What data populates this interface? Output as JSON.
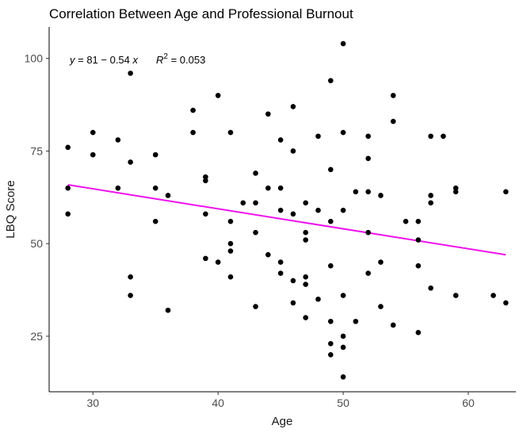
{
  "chart_data": {
    "type": "scatter",
    "title": "Correlation Between Age and Professional Burnout",
    "xlabel": "Age",
    "ylabel": "LBQ Score",
    "xlim": [
      26.5,
      63.8
    ],
    "ylim": [
      10,
      108.5
    ],
    "x_ticks": [
      30,
      40,
      50,
      60
    ],
    "y_ticks": [
      25,
      50,
      75,
      100
    ],
    "grid": false,
    "point_color": "#000000",
    "line_color": "#ee11ee",
    "annotation": {
      "y_var": "y",
      "equation": " = 81 − 0.54 ",
      "x_var": "x",
      "r2_base": "R",
      "r2_exp": "2",
      "r2_value": " = 0.053"
    },
    "regression": {
      "intercept": 81,
      "slope": -0.54,
      "x_range": [
        28,
        63
      ]
    },
    "points": [
      {
        "x": 28,
        "y": 76
      },
      {
        "x": 28,
        "y": 65
      },
      {
        "x": 28,
        "y": 58
      },
      {
        "x": 30,
        "y": 80
      },
      {
        "x": 30,
        "y": 74
      },
      {
        "x": 32,
        "y": 78
      },
      {
        "x": 32,
        "y": 65
      },
      {
        "x": 33,
        "y": 96
      },
      {
        "x": 33,
        "y": 72
      },
      {
        "x": 33,
        "y": 41
      },
      {
        "x": 33,
        "y": 36
      },
      {
        "x": 35,
        "y": 74
      },
      {
        "x": 35,
        "y": 65
      },
      {
        "x": 35,
        "y": 56
      },
      {
        "x": 36,
        "y": 63
      },
      {
        "x": 36,
        "y": 32
      },
      {
        "x": 38,
        "y": 86
      },
      {
        "x": 38,
        "y": 80
      },
      {
        "x": 39,
        "y": 68
      },
      {
        "x": 39,
        "y": 67
      },
      {
        "x": 39,
        "y": 58
      },
      {
        "x": 39,
        "y": 46
      },
      {
        "x": 40,
        "y": 90
      },
      {
        "x": 40,
        "y": 45
      },
      {
        "x": 41,
        "y": 80
      },
      {
        "x": 41,
        "y": 56
      },
      {
        "x": 41,
        "y": 50
      },
      {
        "x": 41,
        "y": 48
      },
      {
        "x": 41,
        "y": 41
      },
      {
        "x": 42,
        "y": 61
      },
      {
        "x": 43,
        "y": 69
      },
      {
        "x": 43,
        "y": 61
      },
      {
        "x": 43,
        "y": 53
      },
      {
        "x": 43,
        "y": 33
      },
      {
        "x": 44,
        "y": 85
      },
      {
        "x": 44,
        "y": 65
      },
      {
        "x": 44,
        "y": 47
      },
      {
        "x": 45,
        "y": 78
      },
      {
        "x": 45,
        "y": 65
      },
      {
        "x": 45,
        "y": 59
      },
      {
        "x": 45,
        "y": 45
      },
      {
        "x": 45,
        "y": 42
      },
      {
        "x": 46,
        "y": 87
      },
      {
        "x": 46,
        "y": 75
      },
      {
        "x": 46,
        "y": 58
      },
      {
        "x": 46,
        "y": 40
      },
      {
        "x": 46,
        "y": 34
      },
      {
        "x": 47,
        "y": 61
      },
      {
        "x": 47,
        "y": 53
      },
      {
        "x": 47,
        "y": 51
      },
      {
        "x": 47,
        "y": 41
      },
      {
        "x": 47,
        "y": 39
      },
      {
        "x": 47,
        "y": 30
      },
      {
        "x": 48,
        "y": 79
      },
      {
        "x": 48,
        "y": 59
      },
      {
        "x": 48,
        "y": 35
      },
      {
        "x": 49,
        "y": 94
      },
      {
        "x": 49,
        "y": 70
      },
      {
        "x": 49,
        "y": 56
      },
      {
        "x": 49,
        "y": 44
      },
      {
        "x": 49,
        "y": 29
      },
      {
        "x": 49,
        "y": 23
      },
      {
        "x": 49,
        "y": 20
      },
      {
        "x": 50,
        "y": 104
      },
      {
        "x": 50,
        "y": 80
      },
      {
        "x": 50,
        "y": 59
      },
      {
        "x": 50,
        "y": 36
      },
      {
        "x": 50,
        "y": 25
      },
      {
        "x": 50,
        "y": 22
      },
      {
        "x": 50,
        "y": 14
      },
      {
        "x": 51,
        "y": 64
      },
      {
        "x": 51,
        "y": 29
      },
      {
        "x": 52,
        "y": 79
      },
      {
        "x": 52,
        "y": 73
      },
      {
        "x": 52,
        "y": 64
      },
      {
        "x": 52,
        "y": 53
      },
      {
        "x": 52,
        "y": 42
      },
      {
        "x": 53,
        "y": 63
      },
      {
        "x": 53,
        "y": 45
      },
      {
        "x": 53,
        "y": 33
      },
      {
        "x": 54,
        "y": 90
      },
      {
        "x": 54,
        "y": 83
      },
      {
        "x": 54,
        "y": 28
      },
      {
        "x": 55,
        "y": 56
      },
      {
        "x": 56,
        "y": 56
      },
      {
        "x": 56,
        "y": 51
      },
      {
        "x": 56,
        "y": 44
      },
      {
        "x": 56,
        "y": 26
      },
      {
        "x": 57,
        "y": 79
      },
      {
        "x": 57,
        "y": 63
      },
      {
        "x": 57,
        "y": 61
      },
      {
        "x": 57,
        "y": 38
      },
      {
        "x": 58,
        "y": 79
      },
      {
        "x": 59,
        "y": 65
      },
      {
        "x": 59,
        "y": 64
      },
      {
        "x": 59,
        "y": 36
      },
      {
        "x": 62,
        "y": 36
      },
      {
        "x": 63,
        "y": 64
      },
      {
        "x": 63,
        "y": 34
      }
    ]
  }
}
